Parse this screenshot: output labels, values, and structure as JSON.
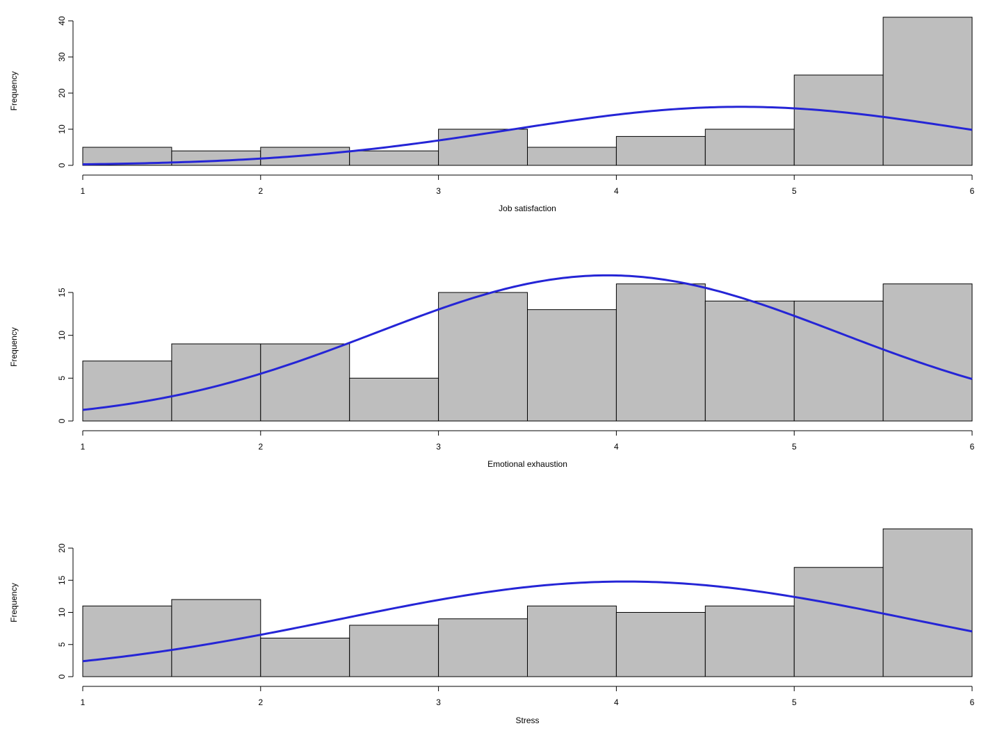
{
  "chart_data": [
    {
      "type": "bar",
      "subtype": "histogram",
      "xlabel": "Job satisfaction",
      "ylabel": "Frequency",
      "xlim": [
        1,
        6
      ],
      "ylim": [
        0,
        40
      ],
      "x_ticks": [
        1,
        2,
        3,
        4,
        5,
        6
      ],
      "y_ticks": [
        0,
        10,
        20,
        30,
        40
      ],
      "bins": [
        [
          1,
          1.5
        ],
        [
          1.5,
          2
        ],
        [
          2,
          2.5
        ],
        [
          2.5,
          3
        ],
        [
          3,
          3.5
        ],
        [
          3.5,
          4
        ],
        [
          4,
          4.5
        ],
        [
          4.5,
          5
        ],
        [
          5,
          5.5
        ],
        [
          5.5,
          6
        ]
      ],
      "values": [
        5,
        4,
        5,
        4,
        10,
        5,
        8,
        10,
        25,
        41
      ],
      "curve": {
        "kind": "normal-density",
        "mean": 4.7,
        "sd": 1.3,
        "peak": 16.2
      },
      "grid": false
    },
    {
      "type": "bar",
      "subtype": "histogram",
      "xlabel": "Emotional exhaustion",
      "ylabel": "Frequency",
      "xlim": [
        1,
        6
      ],
      "ylim": [
        0,
        15
      ],
      "x_ticks": [
        1,
        2,
        3,
        4,
        5,
        6
      ],
      "y_ticks": [
        0,
        5,
        10,
        15
      ],
      "bins": [
        [
          1,
          1.5
        ],
        [
          1.5,
          2
        ],
        [
          2,
          2.5
        ],
        [
          2.5,
          3
        ],
        [
          3,
          3.5
        ],
        [
          3.5,
          4
        ],
        [
          4,
          4.5
        ],
        [
          4.5,
          5
        ],
        [
          5,
          5.5
        ],
        [
          5.5,
          6
        ]
      ],
      "values": [
        7,
        9,
        9,
        5,
        15,
        13,
        16,
        14,
        14,
        16
      ],
      "curve": {
        "kind": "normal-density",
        "mean": 3.95,
        "sd": 1.3,
        "peak": 17
      },
      "grid": false
    },
    {
      "type": "bar",
      "subtype": "histogram",
      "xlabel": "Stress",
      "ylabel": "Frequency",
      "xlim": [
        1,
        6
      ],
      "ylim": [
        0,
        20
      ],
      "x_ticks": [
        1,
        2,
        3,
        4,
        5,
        6
      ],
      "y_ticks": [
        0,
        5,
        10,
        15,
        20
      ],
      "bins": [
        [
          1,
          1.5
        ],
        [
          1.5,
          2
        ],
        [
          2,
          2.5
        ],
        [
          2.5,
          3
        ],
        [
          3,
          3.5
        ],
        [
          3.5,
          4
        ],
        [
          4,
          4.5
        ],
        [
          4.5,
          5
        ],
        [
          5,
          5.5
        ],
        [
          5.5,
          6
        ]
      ],
      "values": [
        11,
        12,
        6,
        8,
        9,
        11,
        10,
        11,
        17,
        23
      ],
      "curve": {
        "kind": "normal-density",
        "mean": 4.05,
        "sd": 1.6,
        "peak": 14.8
      },
      "grid": false
    }
  ],
  "colors": {
    "bar_fill": "#bebebe",
    "bar_stroke": "#000000",
    "curve": "#2525d6",
    "axis": "#000000"
  }
}
